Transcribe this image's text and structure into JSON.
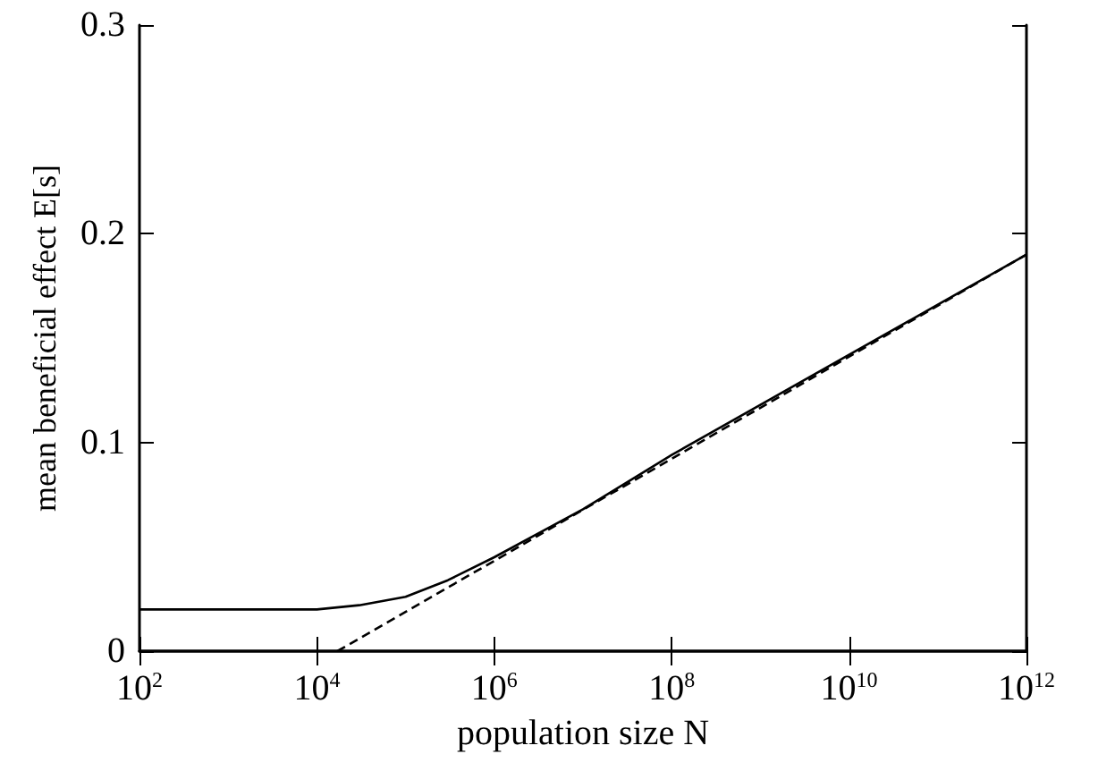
{
  "chart_data": {
    "type": "line",
    "xlabel": "population size N",
    "ylabel": "mean beneficial effect E[s]",
    "log": "x",
    "xlim": [
      100,
      1000000000000
    ],
    "xticks": [
      {
        "value": 100,
        "label": "10$^{2}$"
      },
      {
        "value": 10000,
        "label": "10$^{4}$"
      },
      {
        "value": 1000000,
        "label": "10$^{6}$"
      },
      {
        "value": 100000000,
        "label": "10$^{8}$"
      },
      {
        "value": 10000000000,
        "label": "10$^{10}$"
      },
      {
        "value": 1000000000000,
        "label": "10$^{12}$"
      }
    ],
    "ylim": [
      0,
      0.3
    ],
    "yticks": [
      0,
      0.1,
      0.2,
      0.3
    ],
    "grid": false,
    "marker": "none",
    "series": [
      {
        "color": "#000000",
        "line_style": "solid",
        "x": [
          100,
          1000,
          10000,
          30000,
          100000,
          300000,
          1000000,
          3000000,
          10000000,
          100000000,
          1000000000,
          10000000000,
          100000000000,
          1000000000000
        ],
        "values": [
          0.02,
          0.02,
          0.02,
          0.022,
          0.026,
          0.034,
          0.045,
          0.056,
          0.068,
          0.094,
          0.118,
          0.142,
          0.166,
          0.19
        ]
      },
      {
        "color": "#000000",
        "line_style": "dashed",
        "x": [
          17000,
          1000000000000
        ],
        "values": [
          0,
          0.19
        ]
      }
    ]
  }
}
